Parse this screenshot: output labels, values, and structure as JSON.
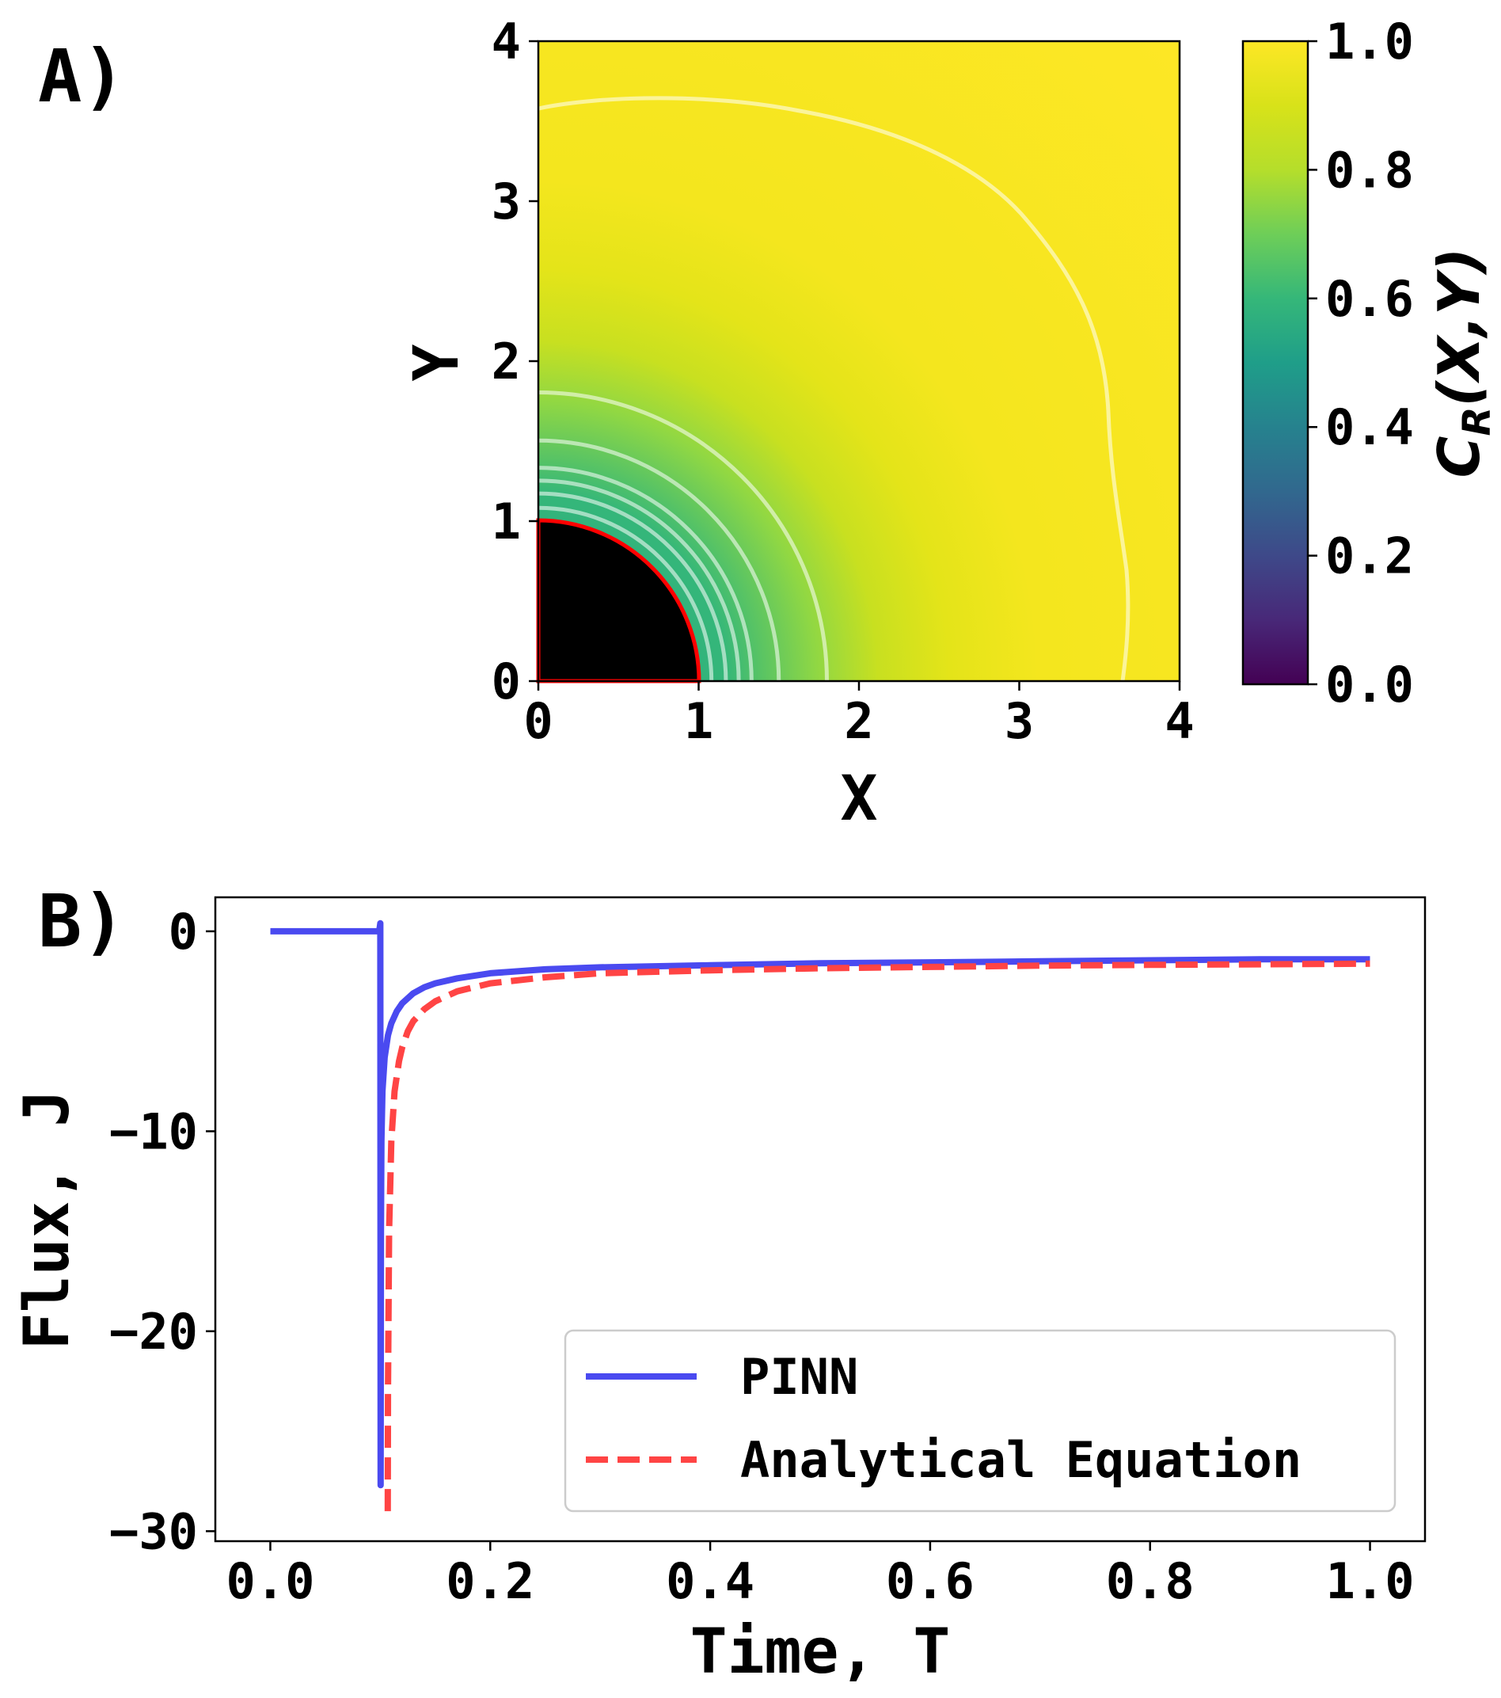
{
  "chart_data": [
    {
      "panel": "A)",
      "type": "heatmap",
      "xlabel": "X",
      "ylabel": "Y",
      "xlim": [
        0,
        4
      ],
      "ylim": [
        0,
        4
      ],
      "xticks": [
        "0",
        "1",
        "2",
        "3",
        "4"
      ],
      "yticks": [
        "0",
        "1",
        "2",
        "3",
        "4"
      ],
      "colorbar": {
        "label_main": "C",
        "label_sub": "R",
        "label_tail": "(X,Y)",
        "ticks": [
          "0.0",
          "0.2",
          "0.4",
          "0.6",
          "0.8",
          "1.0"
        ],
        "range": [
          0,
          1
        ],
        "colormap": "viridis"
      },
      "electrode_radius": 1.0,
      "electrode_color": "#000000",
      "electrode_outline": "#ff0000",
      "contour_radii": [
        1.08,
        1.17,
        1.25,
        1.33,
        1.5,
        1.8
      ],
      "contour_color": "#ffffff"
    },
    {
      "panel": "B)",
      "type": "line",
      "xlabel": "Time, T",
      "ylabel": "Flux, J",
      "xlim": [
        -0.05,
        1.05
      ],
      "ylim": [
        -30.5,
        1.7
      ],
      "xticks": [
        "0.0",
        "0.2",
        "0.4",
        "0.6",
        "0.8",
        "1.0"
      ],
      "yticks": [
        "0",
        "−10",
        "−20",
        "−30"
      ],
      "series": [
        {
          "name": "PINN",
          "color": "#4a4af0",
          "style": "solid",
          "x": [
            0.0,
            0.05,
            0.099,
            0.1,
            0.1003,
            0.1006,
            0.101,
            0.102,
            0.104,
            0.107,
            0.11,
            0.115,
            0.12,
            0.13,
            0.14,
            0.15,
            0.17,
            0.2,
            0.25,
            0.3,
            0.4,
            0.5,
            0.6,
            0.7,
            0.8,
            0.9,
            1.0
          ],
          "y": [
            0.0,
            0.0,
            0.0,
            0.4,
            -27.7,
            -15.0,
            -10.5,
            -8.0,
            -6.3,
            -5.2,
            -4.6,
            -4.0,
            -3.6,
            -3.1,
            -2.8,
            -2.6,
            -2.35,
            -2.1,
            -1.9,
            -1.8,
            -1.7,
            -1.6,
            -1.55,
            -1.5,
            -1.45,
            -1.4,
            -1.4
          ]
        },
        {
          "name": "Analytical Equation",
          "color": "#ff4444",
          "style": "dashed",
          "x": [
            0.1068,
            0.107,
            0.108,
            0.11,
            0.113,
            0.117,
            0.12,
            0.125,
            0.13,
            0.14,
            0.15,
            0.17,
            0.2,
            0.25,
            0.3,
            0.4,
            0.5,
            0.6,
            0.7,
            0.8,
            0.9,
            1.0
          ],
          "y": [
            -29.0,
            -23.0,
            -15.0,
            -10.5,
            -8.0,
            -6.5,
            -5.8,
            -5.0,
            -4.5,
            -3.9,
            -3.5,
            -3.0,
            -2.6,
            -2.3,
            -2.1,
            -1.95,
            -1.85,
            -1.78,
            -1.72,
            -1.68,
            -1.65,
            -1.62
          ]
        }
      ],
      "legend_position": "lower-right"
    }
  ]
}
